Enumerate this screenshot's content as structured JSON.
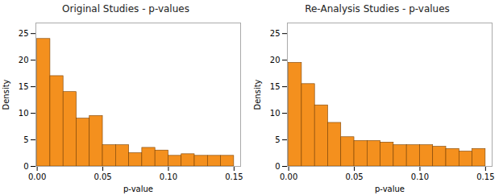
{
  "chart_data": [
    {
      "type": "histogram",
      "title": "Original Studies - p-values",
      "xlabel": "p-value",
      "ylabel": "Density",
      "color": "#F4901E",
      "bins": [
        0,
        0.01,
        0.02,
        0.03,
        0.04,
        0.05,
        0.06,
        0.07,
        0.08,
        0.09,
        0.1,
        0.11,
        0.12,
        0.13,
        0.14,
        0.15
      ],
      "values": [
        24.0,
        17.0,
        14.0,
        9.0,
        9.5,
        4.0,
        4.0,
        2.5,
        3.5,
        3.0,
        2.0,
        2.3,
        2.0,
        2.0,
        2.0
      ],
      "xlim": [
        -0.001,
        0.155
      ],
      "xticks": [
        {
          "value": 0,
          "label": "0.00"
        },
        {
          "value": 0.05,
          "label": "0.05"
        },
        {
          "value": 0.1,
          "label": "0.10"
        },
        {
          "value": 0.15,
          "label": "0.15"
        }
      ],
      "ylim": [
        0,
        27
      ],
      "yticks": [
        0,
        5,
        10,
        15,
        20,
        25
      ],
      "grid": false
    },
    {
      "type": "histogram",
      "title": "Re-Analysis Studies - p-values",
      "xlabel": "p-value",
      "ylabel": "Density",
      "color": "#F4901E",
      "bins": [
        0,
        0.01,
        0.02,
        0.03,
        0.04,
        0.05,
        0.06,
        0.07,
        0.08,
        0.09,
        0.1,
        0.11,
        0.12,
        0.13,
        0.14,
        0.15
      ],
      "values": [
        19.5,
        15.5,
        11.5,
        8.2,
        5.5,
        4.8,
        4.8,
        4.5,
        4.0,
        4.0,
        4.0,
        3.7,
        3.3,
        2.8,
        3.3
      ],
      "xlim": [
        -0.001,
        0.155
      ],
      "xticks": [
        {
          "value": 0,
          "label": "0.00"
        },
        {
          "value": 0.05,
          "label": "0.05"
        },
        {
          "value": 0.1,
          "label": "0.10"
        },
        {
          "value": 0.15,
          "label": "0.15"
        }
      ],
      "ylim": [
        0,
        27
      ],
      "yticks": [
        0,
        5,
        10,
        15,
        20,
        25
      ],
      "grid": false
    }
  ]
}
